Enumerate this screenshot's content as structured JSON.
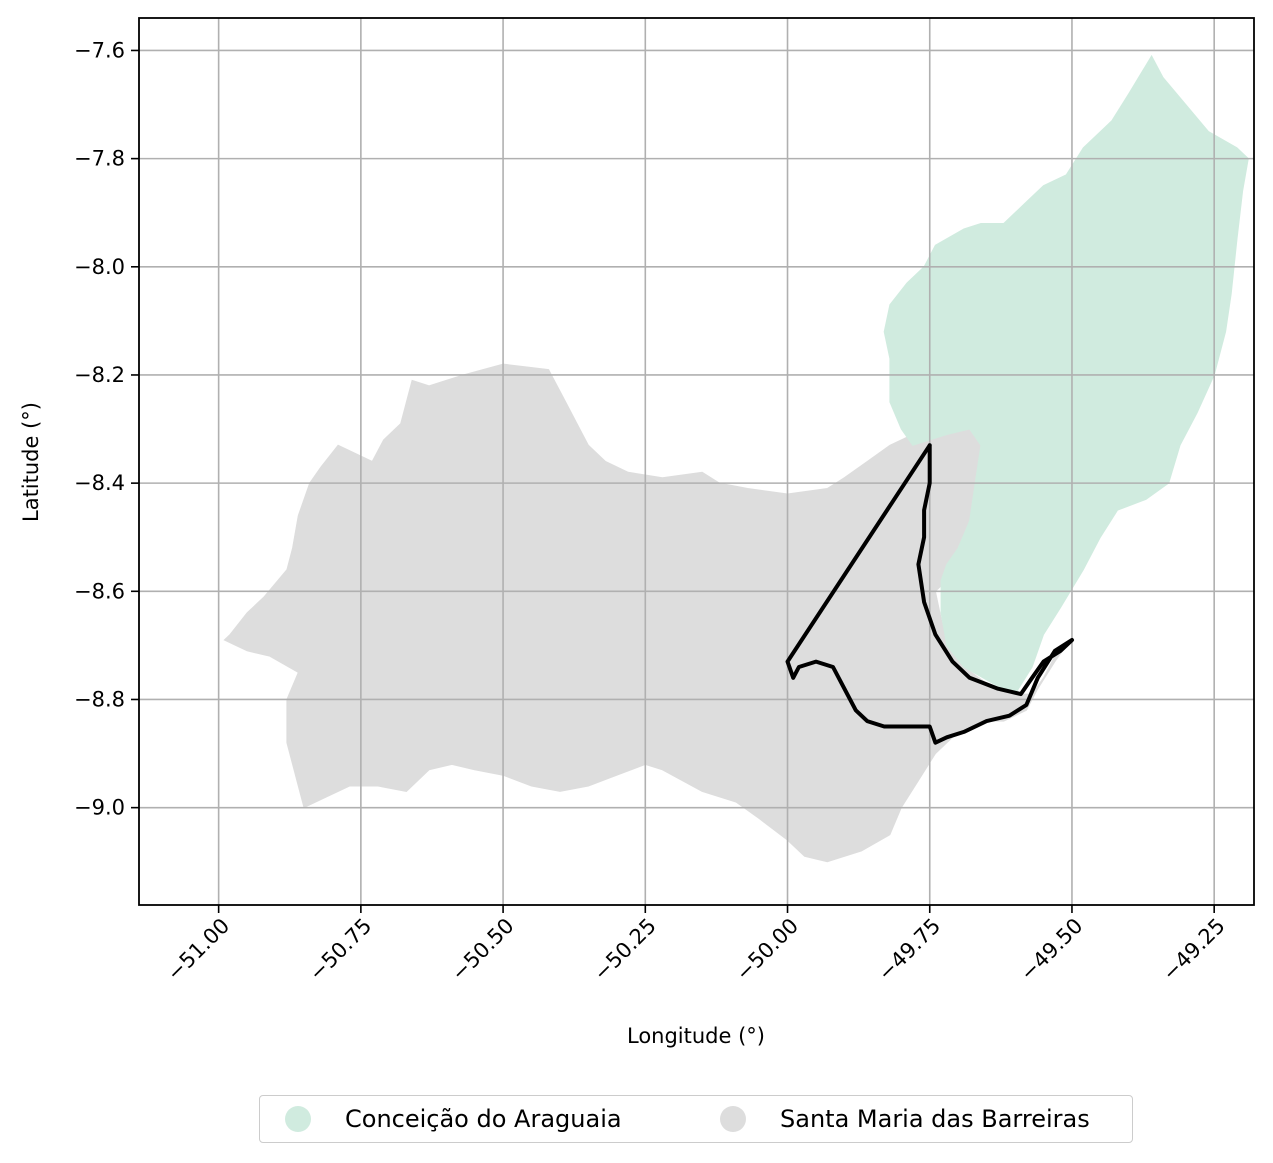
{
  "chart_data": {
    "type": "map",
    "xlabel": "Longitude (°)",
    "ylabel": "Latitude (°)",
    "xlim": [
      -51.14,
      -49.18
    ],
    "ylim": [
      -9.18,
      -7.54
    ],
    "x_ticks": [
      "−51.00",
      "−50.75",
      "−50.50",
      "−50.25",
      "−50.00",
      "−49.75",
      "−49.50",
      "−49.25"
    ],
    "y_ticks": [
      "−7.6",
      "−7.8",
      "−8.0",
      "−8.2",
      "−8.4",
      "−8.6",
      "−8.8",
      "−9.0"
    ],
    "x_tick_values": [
      -51.0,
      -50.75,
      -50.5,
      -50.25,
      -50.0,
      -49.75,
      -49.5,
      -49.25
    ],
    "y_tick_values": [
      -7.6,
      -7.8,
      -8.0,
      -8.2,
      -8.4,
      -8.6,
      -8.8,
      -9.0
    ],
    "grid": true,
    "legend_position": "bottom-center",
    "regions": [
      {
        "name": "Santa Maria das Barreiras",
        "color": "#dddddd",
        "outline": [
          [
            -50.98,
            -8.68
          ],
          [
            -50.95,
            -8.64
          ],
          [
            -50.92,
            -8.61
          ],
          [
            -50.88,
            -8.56
          ],
          [
            -50.87,
            -8.52
          ],
          [
            -50.86,
            -8.46
          ],
          [
            -50.84,
            -8.4
          ],
          [
            -50.82,
            -8.37
          ],
          [
            -50.79,
            -8.33
          ],
          [
            -50.73,
            -8.36
          ],
          [
            -50.71,
            -8.32
          ],
          [
            -50.68,
            -8.29
          ],
          [
            -50.66,
            -8.21
          ],
          [
            -50.63,
            -8.22
          ],
          [
            -50.57,
            -8.2
          ],
          [
            -50.5,
            -8.18
          ],
          [
            -50.42,
            -8.19
          ],
          [
            -50.39,
            -8.25
          ],
          [
            -50.37,
            -8.29
          ],
          [
            -50.35,
            -8.33
          ],
          [
            -50.32,
            -8.36
          ],
          [
            -50.28,
            -8.38
          ],
          [
            -50.22,
            -8.39
          ],
          [
            -50.15,
            -8.38
          ],
          [
            -50.12,
            -8.4
          ],
          [
            -50.07,
            -8.41
          ],
          [
            -50.0,
            -8.42
          ],
          [
            -49.93,
            -8.41
          ],
          [
            -49.9,
            -8.39
          ],
          [
            -49.86,
            -8.36
          ],
          [
            -49.82,
            -8.33
          ],
          [
            -49.78,
            -8.31
          ],
          [
            -49.74,
            -8.31
          ],
          [
            -49.7,
            -8.29
          ],
          [
            -49.66,
            -8.28
          ],
          [
            -49.66,
            -8.32
          ],
          [
            -49.66,
            -8.4
          ],
          [
            -49.66,
            -8.48
          ],
          [
            -49.66,
            -8.55
          ],
          [
            -49.72,
            -8.58
          ],
          [
            -49.74,
            -8.6
          ],
          [
            -49.73,
            -8.65
          ],
          [
            -49.72,
            -8.7
          ],
          [
            -49.69,
            -8.74
          ],
          [
            -49.65,
            -8.77
          ],
          [
            -49.61,
            -8.79
          ],
          [
            -49.57,
            -8.79
          ],
          [
            -49.55,
            -8.76
          ],
          [
            -49.53,
            -8.72
          ],
          [
            -49.51,
            -8.7
          ],
          [
            -49.53,
            -8.73
          ],
          [
            -49.56,
            -8.78
          ],
          [
            -49.58,
            -8.82
          ],
          [
            -49.62,
            -8.84
          ],
          [
            -49.66,
            -8.84
          ],
          [
            -49.7,
            -8.86
          ],
          [
            -49.74,
            -8.9
          ],
          [
            -49.77,
            -8.95
          ],
          [
            -49.8,
            -9.0
          ],
          [
            -49.82,
            -9.05
          ],
          [
            -49.87,
            -9.08
          ],
          [
            -49.93,
            -9.1
          ],
          [
            -49.97,
            -9.09
          ],
          [
            -50.0,
            -9.06
          ],
          [
            -50.05,
            -9.02
          ],
          [
            -50.09,
            -8.99
          ],
          [
            -50.15,
            -8.97
          ],
          [
            -50.22,
            -8.93
          ],
          [
            -50.25,
            -8.92
          ],
          [
            -50.3,
            -8.94
          ],
          [
            -50.35,
            -8.96
          ],
          [
            -50.4,
            -8.97
          ],
          [
            -50.45,
            -8.96
          ],
          [
            -50.5,
            -8.94
          ],
          [
            -50.55,
            -8.93
          ],
          [
            -50.59,
            -8.92
          ],
          [
            -50.63,
            -8.93
          ],
          [
            -50.67,
            -8.97
          ],
          [
            -50.72,
            -8.96
          ],
          [
            -50.77,
            -8.96
          ],
          [
            -50.81,
            -8.98
          ],
          [
            -50.85,
            -9.0
          ],
          [
            -50.86,
            -8.96
          ],
          [
            -50.88,
            -8.88
          ],
          [
            -50.88,
            -8.8
          ],
          [
            -50.86,
            -8.75
          ],
          [
            -50.91,
            -8.72
          ],
          [
            -50.95,
            -8.71
          ],
          [
            -50.99,
            -8.69
          ]
        ]
      },
      {
        "name": "Conceição do Araguaia",
        "color": "#d0ebdf",
        "outline": [
          [
            -49.68,
            -8.3
          ],
          [
            -49.72,
            -8.31
          ],
          [
            -49.75,
            -8.32
          ],
          [
            -49.78,
            -8.33
          ],
          [
            -49.8,
            -8.3
          ],
          [
            -49.82,
            -8.25
          ],
          [
            -49.82,
            -8.17
          ],
          [
            -49.83,
            -8.12
          ],
          [
            -49.82,
            -8.07
          ],
          [
            -49.79,
            -8.03
          ],
          [
            -49.76,
            -8.0
          ],
          [
            -49.74,
            -7.96
          ],
          [
            -49.69,
            -7.93
          ],
          [
            -49.66,
            -7.92
          ],
          [
            -49.62,
            -7.92
          ],
          [
            -49.58,
            -7.88
          ],
          [
            -49.55,
            -7.85
          ],
          [
            -49.51,
            -7.83
          ],
          [
            -49.48,
            -7.78
          ],
          [
            -49.43,
            -7.73
          ],
          [
            -49.4,
            -7.68
          ],
          [
            -49.36,
            -7.61
          ],
          [
            -49.34,
            -7.65
          ],
          [
            -49.3,
            -7.7
          ],
          [
            -49.26,
            -7.75
          ],
          [
            -49.21,
            -7.78
          ],
          [
            -49.19,
            -7.8
          ],
          [
            -49.2,
            -7.86
          ],
          [
            -49.21,
            -7.95
          ],
          [
            -49.22,
            -8.05
          ],
          [
            -49.23,
            -8.12
          ],
          [
            -49.25,
            -8.2
          ],
          [
            -49.28,
            -8.27
          ],
          [
            -49.31,
            -8.33
          ],
          [
            -49.33,
            -8.4
          ],
          [
            -49.37,
            -8.43
          ],
          [
            -49.42,
            -8.45
          ],
          [
            -49.45,
            -8.5
          ],
          [
            -49.48,
            -8.56
          ],
          [
            -49.52,
            -8.63
          ],
          [
            -49.55,
            -8.68
          ],
          [
            -49.57,
            -8.74
          ],
          [
            -49.6,
            -8.79
          ],
          [
            -49.64,
            -8.77
          ],
          [
            -49.69,
            -8.74
          ],
          [
            -49.72,
            -8.7
          ],
          [
            -49.73,
            -8.64
          ],
          [
            -49.73,
            -8.58
          ],
          [
            -49.72,
            -8.55
          ],
          [
            -49.7,
            -8.52
          ],
          [
            -49.68,
            -8.47
          ],
          [
            -49.67,
            -8.4
          ],
          [
            -49.66,
            -8.33
          ]
        ]
      }
    ],
    "outline_path": [
      [
        -49.75,
        -8.33
      ],
      [
        -49.75,
        -8.4
      ],
      [
        -49.76,
        -8.45
      ],
      [
        -49.76,
        -8.5
      ],
      [
        -49.77,
        -8.55
      ],
      [
        -49.76,
        -8.62
      ],
      [
        -49.74,
        -8.68
      ],
      [
        -49.71,
        -8.73
      ],
      [
        -49.68,
        -8.76
      ],
      [
        -49.63,
        -8.78
      ],
      [
        -49.59,
        -8.79
      ],
      [
        -49.57,
        -8.76
      ],
      [
        -49.55,
        -8.73
      ],
      [
        -49.52,
        -8.71
      ],
      [
        -49.5,
        -8.69
      ],
      [
        -49.53,
        -8.71
      ],
      [
        -49.56,
        -8.76
      ],
      [
        -49.58,
        -8.81
      ],
      [
        -49.61,
        -8.83
      ],
      [
        -49.65,
        -8.84
      ],
      [
        -49.69,
        -8.86
      ],
      [
        -49.72,
        -8.87
      ],
      [
        -49.74,
        -8.88
      ],
      [
        -49.75,
        -8.85
      ],
      [
        -49.78,
        -8.85
      ],
      [
        -49.8,
        -8.85
      ],
      [
        -49.83,
        -8.85
      ],
      [
        -49.86,
        -8.84
      ],
      [
        -49.88,
        -8.82
      ],
      [
        -49.9,
        -8.78
      ],
      [
        -49.92,
        -8.74
      ],
      [
        -49.95,
        -8.73
      ],
      [
        -49.98,
        -8.74
      ],
      [
        -49.99,
        -8.76
      ],
      [
        -50.0,
        -8.73
      ],
      [
        -49.75,
        -8.33
      ]
    ]
  },
  "legend": {
    "items": [
      {
        "label": "Conceição do Araguaia",
        "color": "#d0ebdf"
      },
      {
        "label": "Santa Maria das Barreiras",
        "color": "#dddddd"
      }
    ]
  }
}
